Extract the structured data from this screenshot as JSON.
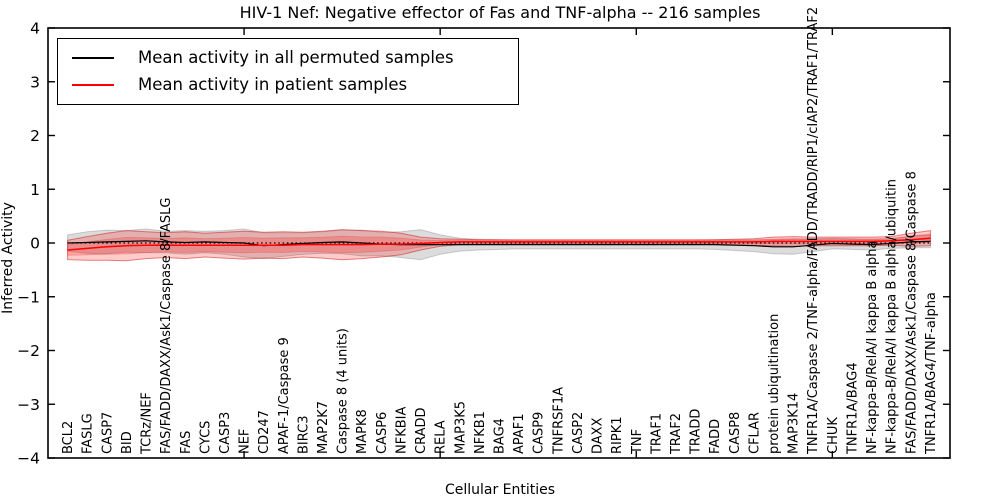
{
  "figure": {
    "title": "HIV-1 Nef: Negative effector of Fas and TNF-alpha -- 216 samples",
    "xlabel": "Cellular Entities",
    "ylabel": "Inferred Activity"
  },
  "legend": {
    "entries": [
      {
        "label": "Mean activity in all permuted samples",
        "color": "#000000"
      },
      {
        "label": "Mean activity in patient samples",
        "color": "#ff0000"
      }
    ],
    "position": "upper left"
  },
  "chart_data": {
    "type": "line",
    "title": "HIV-1 Nef: Negative effector of Fas and TNF-alpha -- 216 samples",
    "xlabel": "Cellular Entities",
    "ylabel": "Inferred Activity",
    "ylim": [
      -4,
      4
    ],
    "ytick_labels": [
      "4",
      "3",
      "2",
      "1",
      "0",
      "−1",
      "−2",
      "−3",
      "−4"
    ],
    "ytick_values": [
      4,
      3,
      2,
      1,
      0,
      -1,
      -2,
      -3,
      -4
    ],
    "xlim": [
      0,
      46
    ],
    "x_minor_tick_values": [
      10,
      20,
      30,
      40
    ],
    "grid": false,
    "zero_line": {
      "show": true,
      "style": "dotted",
      "color": "#000000"
    },
    "categories": [
      "BCL2",
      "FASLG",
      "CASP7",
      "BID",
      "TCRz/NEF",
      "FAS/FADD/DAXX/Ask1/Caspase 8/FASLG",
      "FAS",
      "CYCS",
      "CASP3",
      "NEF",
      "CD247",
      "APAF-1/Caspase 9",
      "BIRC3",
      "MAP2K7",
      "Caspase 8 (4 units)",
      "MAPK8",
      "CASP6",
      "NFKBIA",
      "CRADD",
      "RELA",
      "MAP3K5",
      "NFKB1",
      "BAG4",
      "APAF1",
      "CASP9",
      "TNFRSF1A",
      "CASP2",
      "DAXX",
      "RIPK1",
      "TNF",
      "TRAF1",
      "TRAF2",
      "TRADD",
      "FADD",
      "CASP8",
      "CFLAR",
      "protein ubiquitination",
      "MAP3K14",
      "TNFR1A/Caspase 2/TNF-alpha/FADD/TRADD/RIP1/cIAP2/TRAF1/TRAF2",
      "CHUK",
      "TNFR1A/BAG4",
      "NF-kappa-B/RelA/I kappa B alpha",
      "NF-kappa-B/RelA/I kappa B alpha/ubiquitin",
      "FAS/FADD/DAXX/Ask1/Caspase 8/Caspase 8",
      "TNFR1A/BAG4/TNF-alpha"
    ],
    "series": [
      {
        "name": "Mean activity in all permuted samples",
        "color": "#000000",
        "band_color": "rgba(130,130,130,0.28)",
        "values": [
          0.0,
          0.01,
          0.02,
          0.03,
          0.04,
          0.02,
          0.01,
          0.02,
          0.01,
          0.0,
          -0.05,
          -0.03,
          -0.01,
          0.01,
          0.02,
          0.0,
          -0.02,
          -0.03,
          -0.03,
          -0.03,
          -0.03,
          -0.03,
          -0.03,
          -0.03,
          -0.03,
          -0.03,
          -0.03,
          -0.03,
          -0.03,
          -0.03,
          -0.03,
          -0.03,
          -0.03,
          -0.03,
          -0.04,
          -0.05,
          -0.07,
          -0.07,
          -0.04,
          -0.01,
          -0.02,
          -0.03,
          -0.01,
          0.02,
          0.03
        ],
        "band": [
          0.15,
          0.2,
          0.22,
          0.2,
          0.22,
          0.2,
          0.22,
          0.2,
          0.22,
          0.26,
          0.24,
          0.22,
          0.2,
          0.2,
          0.22,
          0.24,
          0.22,
          0.24,
          0.28,
          0.18,
          0.12,
          0.1,
          0.09,
          0.08,
          0.08,
          0.08,
          0.08,
          0.08,
          0.08,
          0.08,
          0.08,
          0.08,
          0.08,
          0.09,
          0.1,
          0.11,
          0.13,
          0.14,
          0.12,
          0.1,
          0.1,
          0.1,
          0.09,
          0.11,
          0.12
        ]
      },
      {
        "name": "Mean activity in patient samples",
        "color": "#ff0000",
        "band_color": "rgba(255,0,0,0.20)",
        "band_edge_color": "rgba(215,30,30,0.55)",
        "values": [
          -0.13,
          -0.1,
          -0.07,
          -0.05,
          -0.04,
          -0.04,
          -0.04,
          -0.04,
          -0.04,
          -0.04,
          -0.04,
          -0.04,
          -0.03,
          -0.03,
          -0.03,
          -0.03,
          -0.02,
          -0.02,
          -0.01,
          0.01,
          0.02,
          0.02,
          0.02,
          0.02,
          0.02,
          0.02,
          0.02,
          0.02,
          0.02,
          0.02,
          0.02,
          0.02,
          0.02,
          0.02,
          0.02,
          0.02,
          0.03,
          0.03,
          0.03,
          0.03,
          0.03,
          0.03,
          0.04,
          0.06,
          0.09
        ],
        "band": [
          0.18,
          0.22,
          0.25,
          0.28,
          0.25,
          0.23,
          0.25,
          0.22,
          0.24,
          0.26,
          0.24,
          0.25,
          0.23,
          0.25,
          0.28,
          0.26,
          0.24,
          0.2,
          0.12,
          0.07,
          0.05,
          0.04,
          0.04,
          0.04,
          0.04,
          0.04,
          0.04,
          0.04,
          0.04,
          0.04,
          0.04,
          0.04,
          0.04,
          0.04,
          0.05,
          0.06,
          0.08,
          0.09,
          0.08,
          0.08,
          0.08,
          0.08,
          0.08,
          0.12,
          0.14
        ]
      }
    ]
  }
}
